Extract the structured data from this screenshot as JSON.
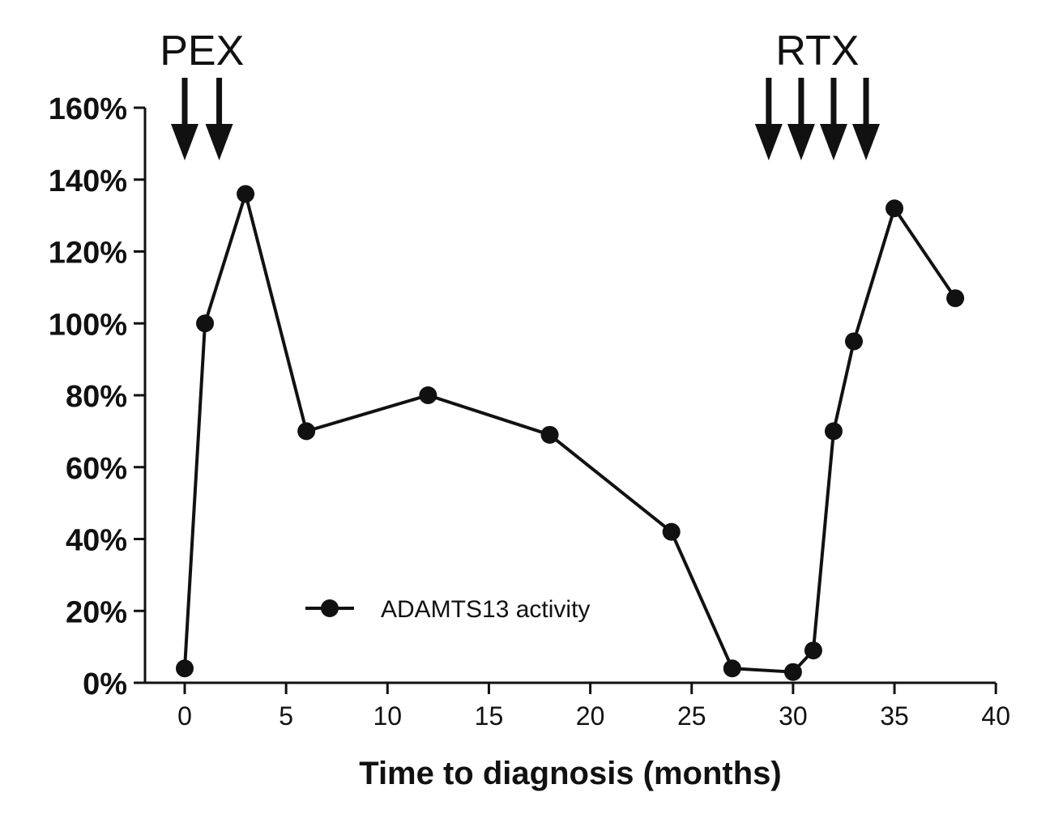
{
  "chart_data": {
    "type": "line",
    "title": "",
    "xlabel": "Time to diagnosis (months)",
    "ylabel": "",
    "xlim": [
      -1,
      40
    ],
    "ylim": [
      0,
      160
    ],
    "x_ticks": [
      0,
      5,
      10,
      15,
      20,
      25,
      30,
      35,
      40
    ],
    "y_ticks": [
      0,
      20,
      40,
      60,
      80,
      100,
      120,
      140,
      160
    ],
    "y_tick_labels": [
      "0%",
      "20%",
      "40%",
      "60%",
      "80%",
      "100%",
      "120%",
      "140%",
      "160%"
    ],
    "grid": false,
    "legend_position": "bottom-center",
    "series": [
      {
        "name": "ADAMTS13 activity",
        "color": "#111111",
        "marker": "circle",
        "x": [
          0,
          1,
          3,
          6,
          12,
          18,
          24,
          27,
          30,
          31,
          32,
          33,
          35,
          38
        ],
        "y": [
          4,
          100,
          136,
          70,
          80,
          69,
          42,
          4,
          3,
          9,
          70,
          95,
          132,
          107
        ]
      }
    ],
    "annotations": [
      {
        "label": "PEX",
        "arrow_x": [
          0,
          1.7
        ]
      },
      {
        "label": "RTX",
        "arrow_x": [
          28.8,
          30.4,
          32.0,
          33.6
        ]
      }
    ]
  }
}
